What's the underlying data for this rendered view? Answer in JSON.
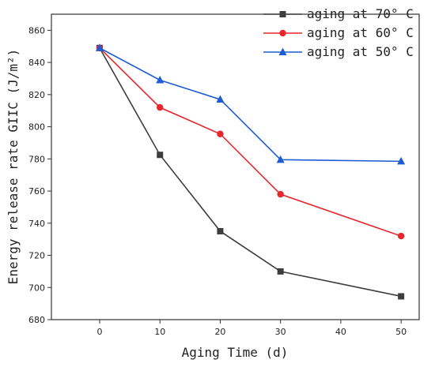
{
  "chart_data": {
    "type": "line",
    "title": "",
    "xlabel": "Aging Time (d)",
    "ylabel": "Energy release rate GIIC (J/m²)",
    "x": [
      0,
      10,
      20,
      30,
      50
    ],
    "xlim": [
      -8,
      53
    ],
    "ylim": [
      680,
      870
    ],
    "xticks": [
      0,
      10,
      20,
      30,
      40,
      50
    ],
    "yticks": [
      680,
      700,
      720,
      740,
      760,
      780,
      800,
      820,
      840,
      860
    ],
    "grid": false,
    "legend_position": "top-right",
    "series": [
      {
        "name": "aging at 70° C",
        "color": "#3d3d3d",
        "marker": "square",
        "values": [
          849,
          782.5,
          735,
          710,
          694.5
        ]
      },
      {
        "name": "aging at 60° C",
        "color": "#e8262b",
        "marker": "circle",
        "values": [
          849,
          812,
          795.5,
          758,
          732
        ]
      },
      {
        "name": "aging at 50° C",
        "color": "#1e5bd6",
        "marker": "triangle",
        "values": [
          849,
          829,
          817,
          779.5,
          778.5
        ]
      }
    ]
  }
}
